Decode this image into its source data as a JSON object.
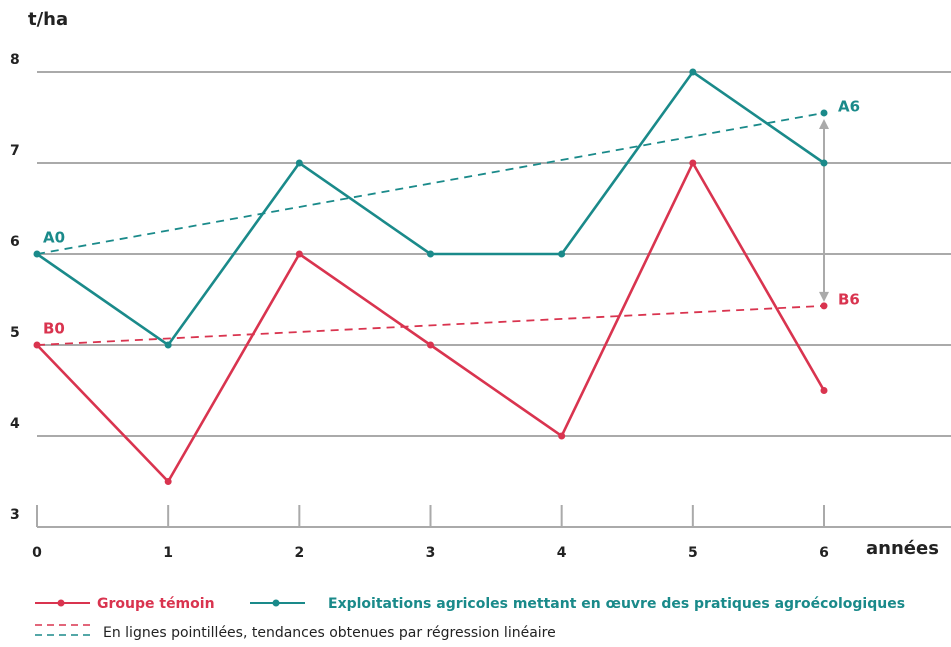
{
  "chart_data": {
    "type": "line",
    "y_label": "t/ha",
    "x_label": "années",
    "x": [
      0,
      1,
      2,
      3,
      4,
      5,
      6
    ],
    "xlim": [
      0,
      6
    ],
    "xticks": [
      0,
      1,
      2,
      3,
      4,
      5,
      6
    ],
    "ylim": [
      3,
      8
    ],
    "yticks": [
      3,
      4,
      5,
      6,
      7,
      8
    ],
    "grid": true,
    "series": [
      {
        "name": "Groupe témoin",
        "color": "#d9344f",
        "values": [
          5,
          3.5,
          6,
          5,
          4,
          7,
          4.5
        ]
      },
      {
        "name": "Exploitations agricoles mettant en œuvre des pratiques agroécologiques",
        "color": "#1a8a8a",
        "values": [
          6,
          5,
          7,
          6,
          6,
          8,
          7
        ]
      }
    ],
    "trends": [
      {
        "color": "#d9344f",
        "x": [
          0,
          6
        ],
        "values": [
          5,
          5.43
        ],
        "labels": [
          "B0",
          "B6"
        ]
      },
      {
        "color": "#1a8a8a",
        "x": [
          0,
          6
        ],
        "values": [
          6,
          7.55
        ],
        "labels": [
          "A0",
          "A6"
        ]
      }
    ],
    "trend_note": "En lignes pointillées, tendances obtenues par régression linéaire"
  }
}
